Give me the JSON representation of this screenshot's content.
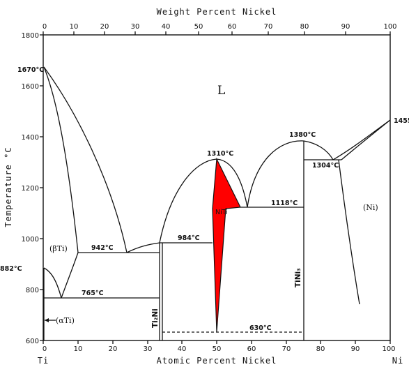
{
  "top_axis": {
    "title": "Weight Percent Nickel",
    "ticks": [
      "0",
      "10",
      "20",
      "30",
      "40",
      "50",
      "60",
      "70",
      "80",
      "90",
      "100"
    ]
  },
  "bottom_axis": {
    "title": "Atomic Percent Nickel",
    "ticks": [
      "0",
      "10",
      "20",
      "30",
      "40",
      "50",
      "60",
      "70",
      "80",
      "90",
      "100"
    ],
    "left_element": "Ti",
    "right_element": "Ni"
  },
  "left_axis": {
    "title": "Temperature °C",
    "ticks": [
      "600",
      "800",
      "1000",
      "1200",
      "1400",
      "1600",
      "1800"
    ]
  },
  "annotations": {
    "t_1670": "1670°C",
    "t_1455": "1455",
    "t_1380": "1380°C",
    "t_1310": "1310°C",
    "t_1304": "1304°C",
    "t_1118": "1118°C",
    "t_984": "984°C",
    "t_942": "942°C",
    "t_882": "882°C",
    "t_765": "765°C",
    "t_630": "630°C"
  },
  "phases": {
    "liquid": "L",
    "beta_ti": "(βTi)",
    "alpha_ti": "(αTi)",
    "niti": "NiTi",
    "ni": "(Ni)",
    "ti2ni": "Ti₂Ni",
    "tini3": "TiNi₃"
  },
  "colors": {
    "highlight": "#ff0000",
    "ink": "#111111",
    "background": "#ffffff"
  }
}
